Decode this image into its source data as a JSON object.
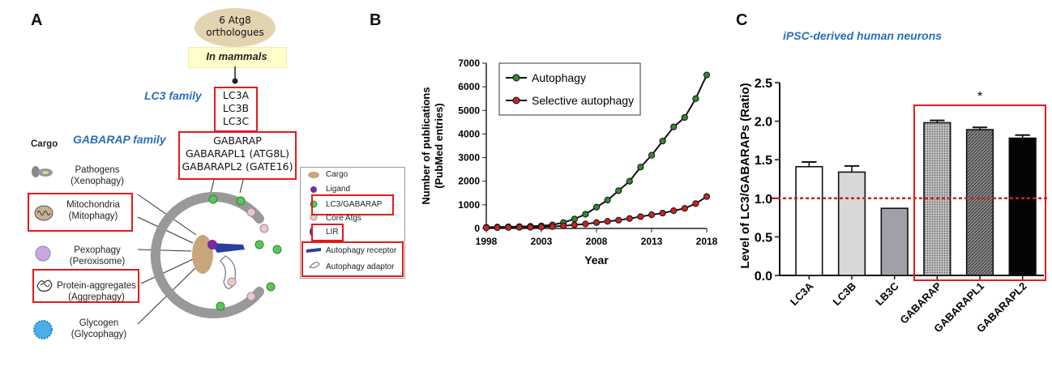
{
  "panel_a": {
    "letter": "A",
    "orthologue_bubble": [
      "6 Atg8",
      "orthologues"
    ],
    "mammals_label": "In mammals",
    "lc3_family_label": "LC3 family",
    "lc3_members": [
      "LC3A",
      "LC3B",
      "LC3C"
    ],
    "gabarap_family_label": "GABARAP family",
    "gabarap_members": [
      "GABARAP",
      "GABARAPL1 (ATG8L)",
      "GABARAPL2 (GATE16)"
    ],
    "cargo_header": "Cargo",
    "cargo_items": [
      {
        "name": "Pathogens",
        "sub": "(Xenophagy)",
        "icon": "pathogen-icon"
      },
      {
        "name": "Mitochondria",
        "sub": "(Mitophagy)",
        "icon": "mitochondria-icon"
      },
      {
        "name": "Pexophagy",
        "sub": "(Peroxisome)",
        "icon": "peroxisome-icon"
      },
      {
        "name": "Protein-aggregates",
        "sub": "(Aggrephagy)",
        "icon": "aggregate-icon"
      },
      {
        "name": "Glycogen",
        "sub": "(Glycophagy)",
        "icon": "glycogen-icon"
      }
    ],
    "legend": [
      "Cargo",
      "Ligand",
      "LC3/GABARAP",
      "Core Atgs",
      "LIR",
      "Autophagy receptor",
      "Autophagy adaptor"
    ],
    "colors": {
      "highlight": "#e41a1c",
      "family_text": "#2a6ebb",
      "mammals_bg": "#ffffcc",
      "bubble": "#e2d4b0"
    }
  },
  "panel_b": {
    "letter": "B",
    "chart_data": {
      "type": "line",
      "xlabel": "Year",
      "ylabel": "Number of publications (PubMed entries)",
      "x": [
        1998,
        1999,
        2000,
        2001,
        2002,
        2003,
        2004,
        2005,
        2006,
        2007,
        2008,
        2009,
        2010,
        2011,
        2012,
        2013,
        2014,
        2015,
        2016,
        2017,
        2018
      ],
      "xticks": [
        1998,
        2003,
        2008,
        2013,
        2018
      ],
      "yticks": [
        0,
        1000,
        2000,
        3000,
        4000,
        5000,
        6000,
        7000
      ],
      "ylim": [
        0,
        7000
      ],
      "xlim": [
        1998,
        2018
      ],
      "legend_position": "top-right",
      "series": [
        {
          "name": "Autophagy",
          "color": "#2e8b2e",
          "values": [
            50,
            60,
            70,
            80,
            90,
            110,
            150,
            250,
            400,
            600,
            900,
            1200,
            1600,
            2000,
            2600,
            3100,
            3700,
            4300,
            4700,
            5500,
            6500
          ]
        },
        {
          "name": "Selective autophagy",
          "color": "#cc2222",
          "values": [
            30,
            35,
            40,
            45,
            50,
            60,
            80,
            110,
            150,
            190,
            250,
            300,
            350,
            420,
            500,
            580,
            650,
            750,
            850,
            1050,
            1350
          ]
        }
      ]
    }
  },
  "panel_c": {
    "letter": "C",
    "chart_data": {
      "type": "bar",
      "title": "iPSC-derived  human  neurons",
      "ylabel": "Level of LC3/GABARAPs (Ratio)",
      "categories": [
        "LC3A",
        "LC3B",
        "LB3C",
        "GABARAP",
        "GABARAPL1",
        "GABARAPL2"
      ],
      "values": [
        1.41,
        1.34,
        0.87,
        1.98,
        1.89,
        1.78
      ],
      "errors": [
        0.06,
        0.08,
        0.0,
        0.03,
        0.03,
        0.04
      ],
      "fills": [
        "white",
        "#d8d8d8",
        "#a0a0a8",
        "#b5b5b5",
        "#808080",
        "#050505"
      ],
      "yticks": [
        0.0,
        0.5,
        1.0,
        1.5,
        2.0,
        2.5
      ],
      "ylim": [
        0,
        2.5
      ],
      "reference_line": 1.0,
      "annotation": "*",
      "grid": false
    }
  }
}
